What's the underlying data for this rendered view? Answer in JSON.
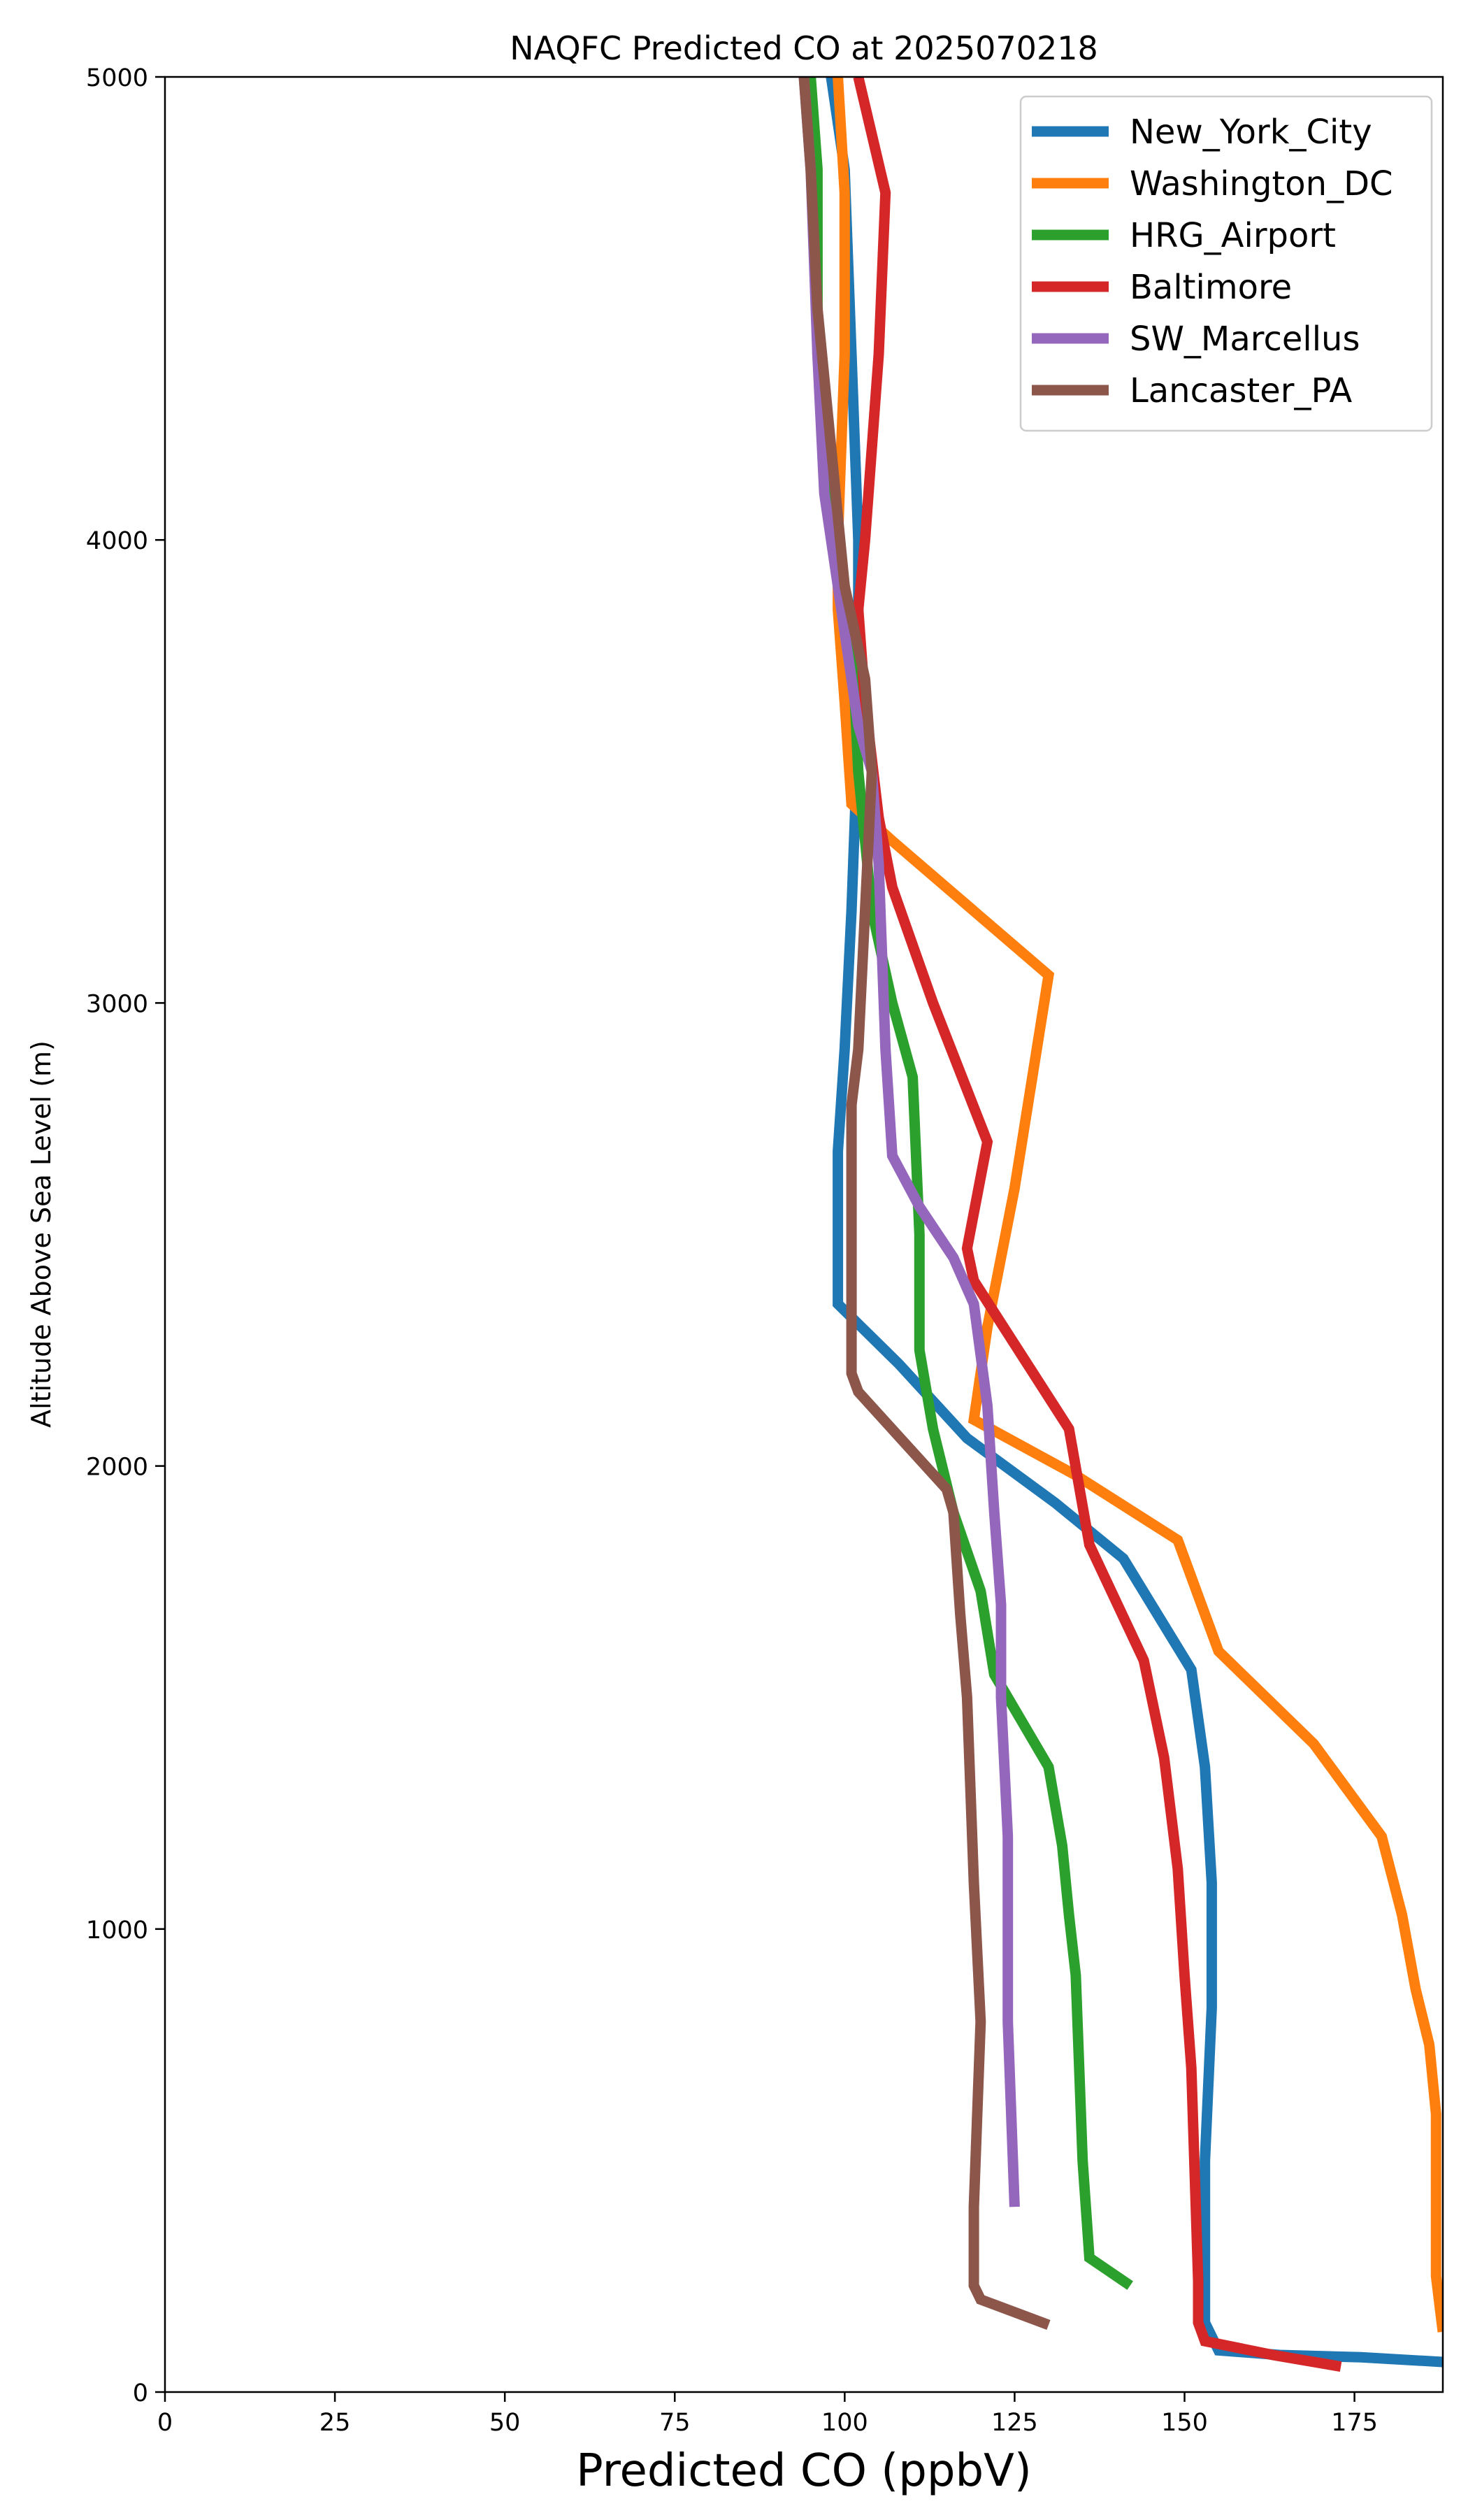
{
  "chart_data": {
    "type": "line",
    "title": "NAQFC Predicted CO at 2025070218",
    "xlabel": "Predicted CO (ppbV)",
    "ylabel": "Altitude Above Sea Level (m)",
    "xlim": [
      0,
      188
    ],
    "ylim": [
      0,
      5000
    ],
    "xticks": [
      "0",
      "25",
      "50",
      "75",
      "100",
      "125",
      "150",
      "175"
    ],
    "yticks": [
      "0",
      "1000",
      "2000",
      "3000",
      "4000",
      "5000"
    ],
    "grid": false,
    "legend_position": "top-right",
    "series": [
      {
        "name": "New_York_City",
        "color": "#1f77b4",
        "points": [
          [
            188,
            65
          ],
          [
            176,
            75
          ],
          [
            164,
            80
          ],
          [
            155,
            90
          ],
          [
            154,
            120
          ],
          [
            153,
            150
          ],
          [
            153,
            220
          ],
          [
            153,
            500
          ],
          [
            154,
            830
          ],
          [
            154,
            1100
          ],
          [
            153,
            1350
          ],
          [
            151,
            1560
          ],
          [
            141,
            1800
          ],
          [
            131,
            1920
          ],
          [
            118,
            2060
          ],
          [
            108,
            2220
          ],
          [
            99,
            2350
          ],
          [
            99,
            2680
          ],
          [
            100,
            2900
          ],
          [
            101,
            3200
          ],
          [
            102,
            3600
          ],
          [
            102,
            4000
          ],
          [
            101,
            4400
          ],
          [
            100,
            4800
          ],
          [
            98,
            5000
          ]
        ]
      },
      {
        "name": "Washington_DC",
        "color": "#ff7f0e",
        "points": [
          [
            188,
            130
          ],
          [
            187,
            250
          ],
          [
            187,
            600
          ],
          [
            186,
            750
          ],
          [
            184,
            870
          ],
          [
            182,
            1030
          ],
          [
            179,
            1200
          ],
          [
            169,
            1400
          ],
          [
            155,
            1600
          ],
          [
            149,
            1840
          ],
          [
            134,
            1980
          ],
          [
            119,
            2100
          ],
          [
            121,
            2300
          ],
          [
            125,
            2600
          ],
          [
            130,
            3060
          ],
          [
            107,
            3350
          ],
          [
            101,
            3430
          ],
          [
            100,
            3650
          ],
          [
            99,
            3850
          ],
          [
            99,
            4000
          ],
          [
            100,
            4400
          ],
          [
            100,
            4750
          ],
          [
            99,
            5000
          ]
        ]
      },
      {
        "name": "HRG_Airport",
        "color": "#2ca02c",
        "points": [
          [
            142,
            230
          ],
          [
            136,
            290
          ],
          [
            135,
            500
          ],
          [
            134,
            900
          ],
          [
            133,
            1030
          ],
          [
            132,
            1180
          ],
          [
            130,
            1350
          ],
          [
            122,
            1550
          ],
          [
            120,
            1730
          ],
          [
            116,
            1900
          ],
          [
            113,
            2080
          ],
          [
            111,
            2250
          ],
          [
            111,
            2500
          ],
          [
            110,
            2840
          ],
          [
            107,
            3000
          ],
          [
            104,
            3200
          ],
          [
            102,
            3500
          ],
          [
            101,
            3800
          ],
          [
            99,
            4000
          ],
          [
            96,
            4400
          ],
          [
            96,
            4800
          ],
          [
            95,
            5000
          ]
        ]
      },
      {
        "name": "Baltimore",
        "color": "#d62728",
        "points": [
          [
            173,
            55
          ],
          [
            163,
            80
          ],
          [
            153,
            110
          ],
          [
            152,
            150
          ],
          [
            152,
            240
          ],
          [
            151,
            700
          ],
          [
            150,
            900
          ],
          [
            149,
            1130
          ],
          [
            147,
            1370
          ],
          [
            144,
            1580
          ],
          [
            136,
            1830
          ],
          [
            133,
            2080
          ],
          [
            119,
            2400
          ],
          [
            118,
            2470
          ],
          [
            121,
            2700
          ],
          [
            113,
            3000
          ],
          [
            107,
            3250
          ],
          [
            105,
            3400
          ],
          [
            103,
            3650
          ],
          [
            102,
            3850
          ],
          [
            103,
            4000
          ],
          [
            105,
            4400
          ],
          [
            106,
            4750
          ],
          [
            102,
            5000
          ]
        ]
      },
      {
        "name": "SW_Marcellus",
        "color": "#9467bd",
        "points": [
          [
            125,
            400
          ],
          [
            124,
            800
          ],
          [
            124,
            1200
          ],
          [
            123,
            1500
          ],
          [
            123,
            1700
          ],
          [
            122,
            1900
          ],
          [
            121,
            2130
          ],
          [
            119,
            2350
          ],
          [
            116,
            2450
          ],
          [
            111,
            2560
          ],
          [
            107,
            2670
          ],
          [
            106,
            2900
          ],
          [
            105,
            3300
          ],
          [
            104,
            3500
          ],
          [
            102,
            3600
          ],
          [
            100,
            3800
          ],
          [
            98,
            4000
          ],
          [
            97,
            4100
          ],
          [
            96,
            4400
          ],
          [
            95,
            4800
          ],
          [
            94,
            5000
          ]
        ]
      },
      {
        "name": "Lancaster_PA",
        "color": "#8c564b",
        "points": [
          [
            130,
            145
          ],
          [
            120,
            200
          ],
          [
            119,
            230
          ],
          [
            119,
            400
          ],
          [
            120,
            800
          ],
          [
            119,
            1100
          ],
          [
            118,
            1500
          ],
          [
            117,
            1680
          ],
          [
            116,
            1900
          ],
          [
            115,
            1950
          ],
          [
            102,
            2160
          ],
          [
            101,
            2200
          ],
          [
            101,
            2440
          ],
          [
            101,
            2780
          ],
          [
            102,
            2900
          ],
          [
            103,
            3200
          ],
          [
            104,
            3500
          ],
          [
            103,
            3700
          ],
          [
            100,
            3900
          ],
          [
            98,
            4200
          ],
          [
            96,
            4500
          ],
          [
            95,
            4800
          ],
          [
            94,
            5000
          ]
        ]
      }
    ]
  }
}
